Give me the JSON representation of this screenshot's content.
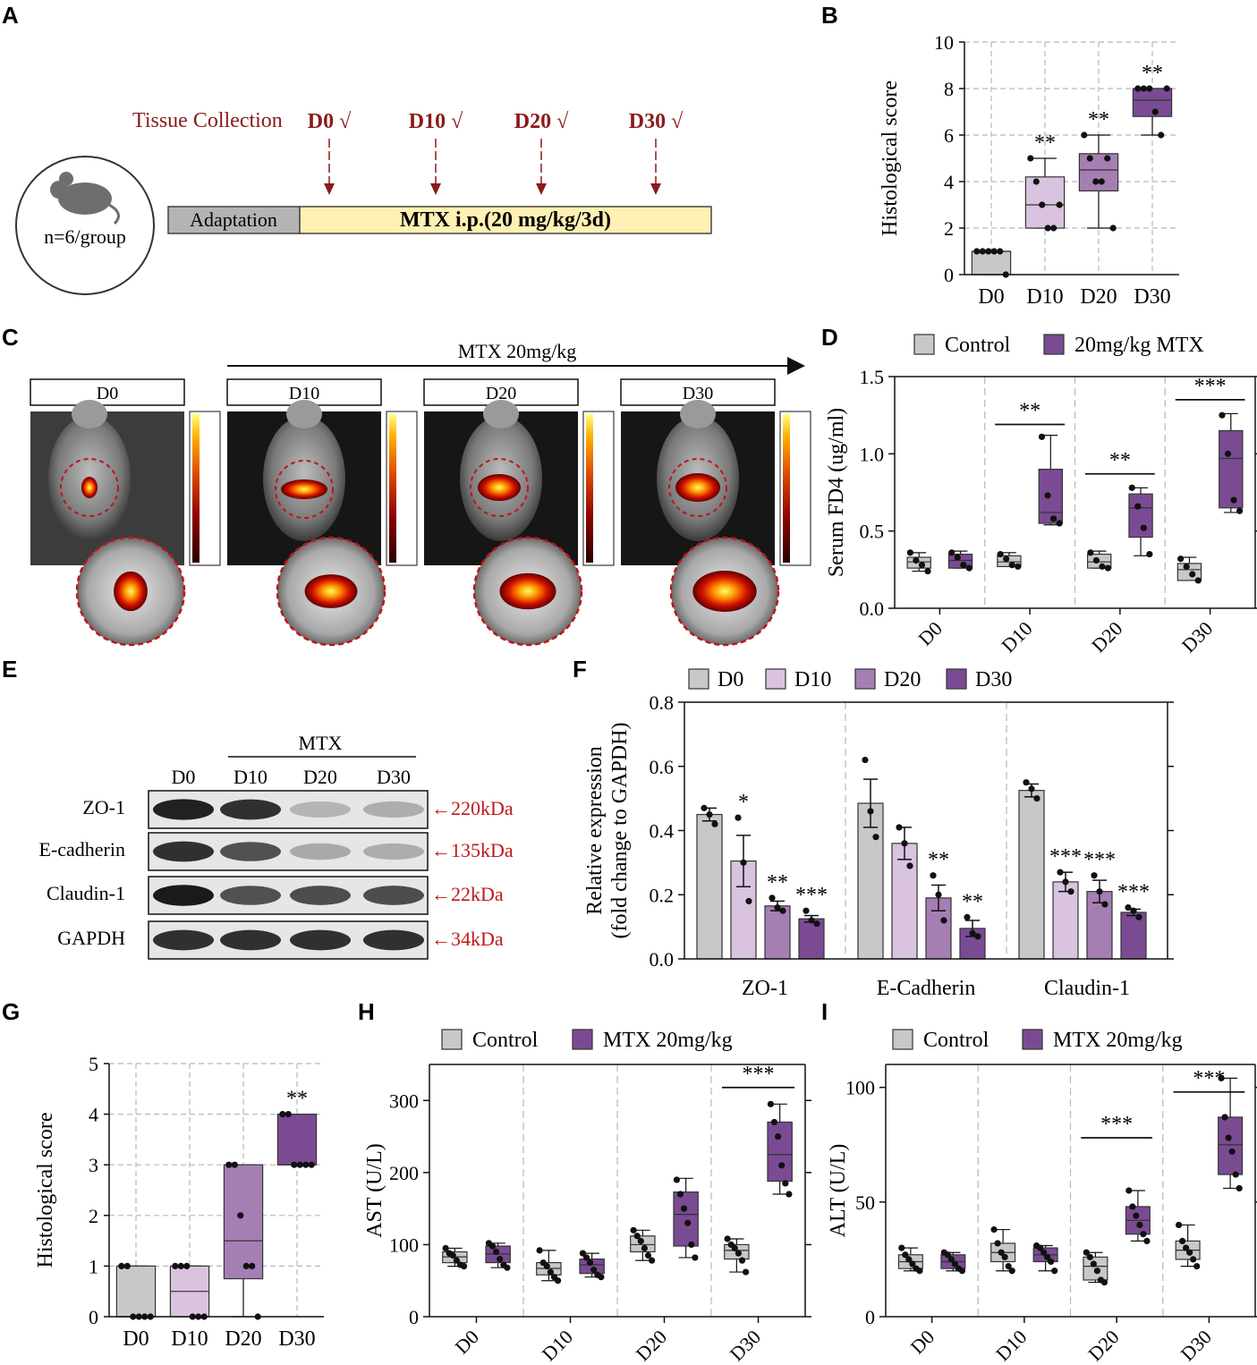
{
  "colors": {
    "control": "#c8c8c8",
    "d10": "#d9c3de",
    "d20": "#a57fb3",
    "d30": "#7a4b93",
    "mtx": "#7a4b93",
    "dark_red": "#8b1a1a",
    "timeline_yellow": "#fff0b3",
    "timeline_gray": "#b4b4b4"
  },
  "panels": {
    "A": {
      "letter": "A",
      "tissue_label": "Tissue Collection",
      "timepoints": [
        "D0 √",
        "D10 √",
        "D20 √",
        "D30 √"
      ],
      "adaptation": "Adaptation",
      "treatment": "MTX  i.p.(20 mg/kg/3d)",
      "group": "n=6/group"
    },
    "C": {
      "letter": "C",
      "arrow_label": "MTX 20mg/kg",
      "images": [
        "D0",
        "D10",
        "D20",
        "D30"
      ]
    },
    "E": {
      "letter": "E",
      "group_label": "MTX",
      "lanes": [
        "D0",
        "D10",
        "D20",
        "D30"
      ],
      "bands": [
        {
          "protein": "ZO-1",
          "size": "←220kDa",
          "intensity": [
            0.92,
            0.85,
            0.25,
            0.28
          ]
        },
        {
          "protein": "E-cadherin",
          "size": "←135kDa",
          "intensity": [
            0.85,
            0.7,
            0.3,
            0.28
          ]
        },
        {
          "protein": "Claudin-1",
          "size": "←22kDa",
          "intensity": [
            0.95,
            0.7,
            0.72,
            0.72
          ]
        },
        {
          "protein": "GAPDH",
          "size": "←34kDa",
          "intensity": [
            0.85,
            0.85,
            0.85,
            0.85
          ]
        }
      ]
    }
  },
  "chart_data": [
    {
      "panel": "B",
      "letter": "B",
      "type": "box",
      "ylabel": "Histological score",
      "ylim": [
        0,
        10
      ],
      "yticks": [
        0,
        2,
        4,
        6,
        8,
        10
      ],
      "categories": [
        "D0",
        "D10",
        "D20",
        "D30"
      ],
      "boxes": [
        {
          "min": 0,
          "q1": 0,
          "median": 1,
          "q3": 1,
          "max": 1,
          "points": [
            1,
            1,
            1,
            1,
            1,
            0
          ],
          "sig": ""
        },
        {
          "min": 2,
          "q1": 2,
          "median": 3,
          "q3": 4.2,
          "max": 5,
          "points": [
            5,
            4,
            3,
            2,
            2,
            3
          ],
          "sig": "**"
        },
        {
          "min": 2,
          "q1": 3.6,
          "median": 4.5,
          "q3": 5.2,
          "max": 6,
          "points": [
            6,
            5,
            4,
            4,
            5,
            2
          ],
          "sig": "**"
        },
        {
          "min": 6,
          "q1": 6.8,
          "median": 7.5,
          "q3": 8,
          "max": 8,
          "points": [
            8,
            8,
            8,
            7,
            6,
            8
          ],
          "sig": "**"
        }
      ]
    },
    {
      "panel": "D",
      "letter": "D",
      "type": "box",
      "ylabel": "Serum FD4 (ug/ml)",
      "ylim": [
        0,
        1.5
      ],
      "yticks": [
        "0.0",
        "0.5",
        "1.0",
        "1.5"
      ],
      "legend": [
        "Control",
        "20mg/kg MTX"
      ],
      "categories": [
        "D0",
        "D10",
        "D20",
        "D30"
      ],
      "series": [
        {
          "name": "Control",
          "boxes": [
            {
              "min": 0.24,
              "q1": 0.26,
              "median": 0.3,
              "q3": 0.33,
              "max": 0.36,
              "points": [
                0.36,
                0.31,
                0.28,
                0.24
              ]
            },
            {
              "min": 0.27,
              "q1": 0.27,
              "median": 0.3,
              "q3": 0.34,
              "max": 0.36,
              "points": [
                0.35,
                0.32,
                0.28,
                0.27
              ]
            },
            {
              "min": 0.26,
              "q1": 0.26,
              "median": 0.3,
              "q3": 0.35,
              "max": 0.37,
              "points": [
                0.36,
                0.31,
                0.27,
                0.26
              ]
            },
            {
              "min": 0.18,
              "q1": 0.18,
              "median": 0.25,
              "q3": 0.29,
              "max": 0.33,
              "points": [
                0.32,
                0.27,
                0.22,
                0.18
              ]
            }
          ]
        },
        {
          "name": "20mg/kg MTX",
          "boxes": [
            {
              "min": 0.26,
              "q1": 0.26,
              "median": 0.31,
              "q3": 0.35,
              "max": 0.37,
              "points": [
                0.36,
                0.33,
                0.28,
                0.26
              ]
            },
            {
              "min": 0.54,
              "q1": 0.55,
              "median": 0.62,
              "q3": 0.9,
              "max": 1.12,
              "points": [
                1.11,
                0.73,
                0.58,
                0.55
              ]
            },
            {
              "min": 0.34,
              "q1": 0.46,
              "median": 0.65,
              "q3": 0.74,
              "max": 0.78,
              "points": [
                0.78,
                0.66,
                0.52,
                0.35
              ]
            },
            {
              "min": 0.62,
              "q1": 0.65,
              "median": 0.97,
              "q3": 1.15,
              "max": 1.26,
              "points": [
                1.25,
                1.0,
                0.7,
                0.63
              ]
            }
          ]
        }
      ],
      "sig": [
        "",
        "**",
        "**",
        "***"
      ]
    },
    {
      "panel": "F",
      "letter": "F",
      "type": "bar",
      "ylabel": "Relative expression",
      "ylabel2": "(fold change to GAPDH)",
      "ylim": [
        0,
        0.8
      ],
      "yticks": [
        "0.0",
        "0.2",
        "0.4",
        "0.6",
        "0.8"
      ],
      "legend": [
        "D0",
        "D10",
        "D20",
        "D30"
      ],
      "categories": [
        "ZO-1",
        "E-Cadherin",
        "Claudin-1"
      ],
      "series": [
        {
          "name": "D0",
          "values": [
            0.45,
            0.485,
            0.525
          ],
          "errors": [
            0.02,
            0.075,
            0.02
          ],
          "points": [
            [
              0.47,
              0.45,
              0.42
            ],
            [
              0.62,
              0.46,
              0.38
            ],
            [
              0.55,
              0.53,
              0.5
            ]
          ],
          "sig": [
            "",
            "",
            ""
          ]
        },
        {
          "name": "D10",
          "values": [
            0.305,
            0.36,
            0.24
          ],
          "errors": [
            0.08,
            0.05,
            0.03
          ],
          "points": [
            [
              0.44,
              0.3,
              0.18
            ],
            [
              0.41,
              0.36,
              0.29
            ],
            [
              0.27,
              0.24,
              0.21
            ]
          ],
          "sig": [
            "*",
            "",
            "***"
          ]
        },
        {
          "name": "D20",
          "values": [
            0.165,
            0.19,
            0.21
          ],
          "errors": [
            0.015,
            0.04,
            0.035
          ],
          "points": [
            [
              0.19,
              0.16,
              0.15
            ],
            [
              0.26,
              0.2,
              0.12
            ],
            [
              0.26,
              0.21,
              0.17
            ]
          ],
          "sig": [
            "**",
            "**",
            "***"
          ]
        },
        {
          "name": "D30",
          "values": [
            0.125,
            0.095,
            0.145
          ],
          "errors": [
            0.01,
            0.025,
            0.01
          ],
          "points": [
            [
              0.15,
              0.12,
              0.11
            ],
            [
              0.13,
              0.08,
              0.07
            ],
            [
              0.16,
              0.15,
              0.13
            ]
          ],
          "sig": [
            "***",
            "**",
            "***"
          ]
        }
      ]
    },
    {
      "panel": "G",
      "letter": "G",
      "type": "box",
      "ylabel": "Histological score",
      "ylim": [
        0,
        5
      ],
      "yticks": [
        0,
        1,
        2,
        3,
        4,
        5
      ],
      "categories": [
        "D0",
        "D10",
        "D20",
        "D30"
      ],
      "boxes": [
        {
          "min": 0,
          "q1": 0,
          "median": 0,
          "q3": 1,
          "max": 1,
          "points": [
            1,
            1,
            0,
            0,
            0,
            0
          ],
          "sig": ""
        },
        {
          "min": 0,
          "q1": 0,
          "median": 0.5,
          "q3": 1,
          "max": 1,
          "points": [
            1,
            1,
            1,
            0,
            0,
            0
          ],
          "sig": ""
        },
        {
          "min": 0,
          "q1": 0.75,
          "median": 1.5,
          "q3": 3,
          "max": 3,
          "points": [
            3,
            3,
            2,
            1,
            1,
            0
          ],
          "sig": ""
        },
        {
          "min": 3,
          "q1": 3,
          "median": 3,
          "q3": 4,
          "max": 4,
          "points": [
            4,
            4,
            3,
            3,
            3,
            3
          ],
          "sig": "**"
        }
      ]
    },
    {
      "panel": "H",
      "letter": "H",
      "type": "box",
      "ylabel": "AST  (U/L)",
      "ylim": [
        0,
        350
      ],
      "yticks": [
        0,
        100,
        200,
        300
      ],
      "legend": [
        "Control",
        "MTX 20mg/kg"
      ],
      "categories": [
        "D0",
        "D10",
        "D20",
        "D30"
      ],
      "series": [
        {
          "name": "Control",
          "boxes": [
            {
              "min": 70,
              "q1": 75,
              "median": 83,
              "q3": 90,
              "max": 95,
              "points": [
                95,
                88,
                85,
                78,
                72,
                70
              ]
            },
            {
              "min": 50,
              "q1": 58,
              "median": 67,
              "q3": 75,
              "max": 92,
              "points": [
                92,
                75,
                70,
                62,
                55,
                50
              ]
            },
            {
              "min": 78,
              "q1": 90,
              "median": 100,
              "q3": 112,
              "max": 120,
              "points": [
                120,
                112,
                105,
                95,
                85,
                78
              ]
            },
            {
              "min": 62,
              "q1": 80,
              "median": 92,
              "q3": 100,
              "max": 108,
              "points": [
                108,
                100,
                95,
                88,
                78,
                62
              ]
            }
          ]
        },
        {
          "name": "MTX 20mg/kg",
          "boxes": [
            {
              "min": 68,
              "q1": 75,
              "median": 87,
              "q3": 98,
              "max": 102,
              "points": [
                102,
                98,
                90,
                80,
                72,
                68
              ]
            },
            {
              "min": 55,
              "q1": 60,
              "median": 72,
              "q3": 80,
              "max": 88,
              "points": [
                88,
                82,
                75,
                65,
                58,
                55
              ]
            },
            {
              "min": 82,
              "q1": 98,
              "median": 142,
              "q3": 173,
              "max": 192,
              "points": [
                190,
                170,
                150,
                130,
                100,
                82
              ]
            },
            {
              "min": 170,
              "q1": 188,
              "median": 225,
              "q3": 270,
              "max": 295,
              "points": [
                295,
                270,
                250,
                210,
                185,
                170
              ]
            }
          ]
        }
      ],
      "sig": [
        "",
        "",
        "",
        "***"
      ]
    },
    {
      "panel": "I",
      "letter": "I",
      "type": "box",
      "ylabel": "ALT  (U/L)",
      "ylim": [
        0,
        110
      ],
      "yticks": [
        0,
        50,
        100
      ],
      "legend": [
        "Control",
        "MTX 20mg/kg"
      ],
      "categories": [
        "D0",
        "D10",
        "D20",
        "D30"
      ],
      "series": [
        {
          "name": "Control",
          "boxes": [
            {
              "min": 20,
              "q1": 21,
              "median": 24,
              "q3": 27,
              "max": 30,
              "points": [
                30,
                27,
                25,
                23,
                21,
                20
              ]
            },
            {
              "min": 20,
              "q1": 24,
              "median": 28,
              "q3": 32,
              "max": 38,
              "points": [
                38,
                32,
                28,
                26,
                22,
                20
              ]
            },
            {
              "min": 15,
              "q1": 16,
              "median": 22,
              "q3": 26,
              "max": 28,
              "points": [
                28,
                26,
                23,
                20,
                16,
                15
              ]
            },
            {
              "min": 22,
              "q1": 25,
              "median": 29,
              "q3": 33,
              "max": 40,
              "points": [
                40,
                33,
                30,
                28,
                25,
                22
              ]
            }
          ]
        },
        {
          "name": "MTX 20mg/kg",
          "boxes": [
            {
              "min": 20,
              "q1": 21,
              "median": 24,
              "q3": 27,
              "max": 28,
              "points": [
                28,
                27,
                25,
                23,
                21,
                20
              ]
            },
            {
              "min": 20,
              "q1": 24,
              "median": 27,
              "q3": 30,
              "max": 31,
              "points": [
                31,
                30,
                28,
                26,
                24,
                20
              ]
            },
            {
              "min": 33,
              "q1": 36,
              "median": 42,
              "q3": 48,
              "max": 55,
              "points": [
                55,
                48,
                44,
                40,
                36,
                33
              ]
            },
            {
              "min": 56,
              "q1": 62,
              "median": 75,
              "q3": 87,
              "max": 104,
              "points": [
                104,
                87,
                78,
                72,
                62,
                56
              ]
            }
          ]
        }
      ],
      "sig": [
        "",
        "",
        "***",
        "***"
      ]
    }
  ]
}
